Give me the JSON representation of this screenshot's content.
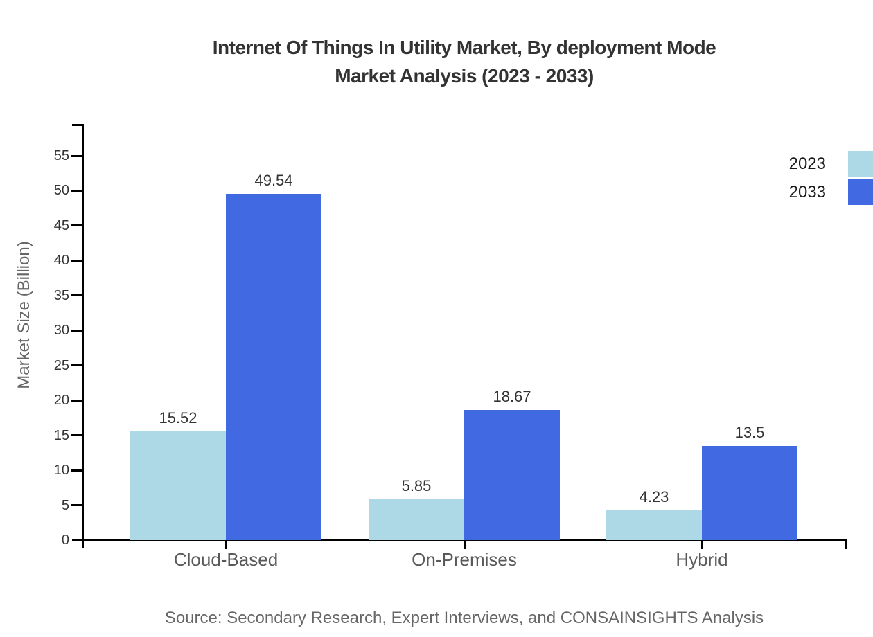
{
  "title": {
    "line1": "Internet Of Things In Utility Market, By deployment Mode",
    "line2": "Market Analysis (2023 - 2033)"
  },
  "source": "Source: Secondary Research, Expert Interviews, and CONSAINSIGHTS Analysis",
  "chart_data": {
    "type": "bar",
    "title": "Internet Of Things In Utility Market, By deployment Mode Market Analysis (2023 - 2033)",
    "xlabel": "",
    "ylabel": "Market Size (Billion)",
    "categories": [
      "Cloud-Based",
      "On-Premises",
      "Hybrid"
    ],
    "series": [
      {
        "name": "2023",
        "color": "#ADD8E6",
        "values": [
          15.52,
          5.85,
          4.23
        ]
      },
      {
        "name": "2033",
        "color": "#4169E1",
        "values": [
          49.54,
          18.67,
          13.5
        ]
      }
    ],
    "ylim": [
      0,
      55
    ],
    "yticks": [
      0,
      5,
      10,
      15,
      20,
      25,
      30,
      35,
      40,
      45,
      50,
      55
    ],
    "grid": false,
    "value_labels": true,
    "legend_position": "top-right"
  },
  "colors": {
    "axis": "#000000",
    "title_text": "#333333",
    "tick_text": "#333333",
    "value_text": "#333333",
    "category_text": "#595959",
    "muted_text": "#666666",
    "legend_text": "#1a1a1a",
    "background": "#ffffff"
  }
}
